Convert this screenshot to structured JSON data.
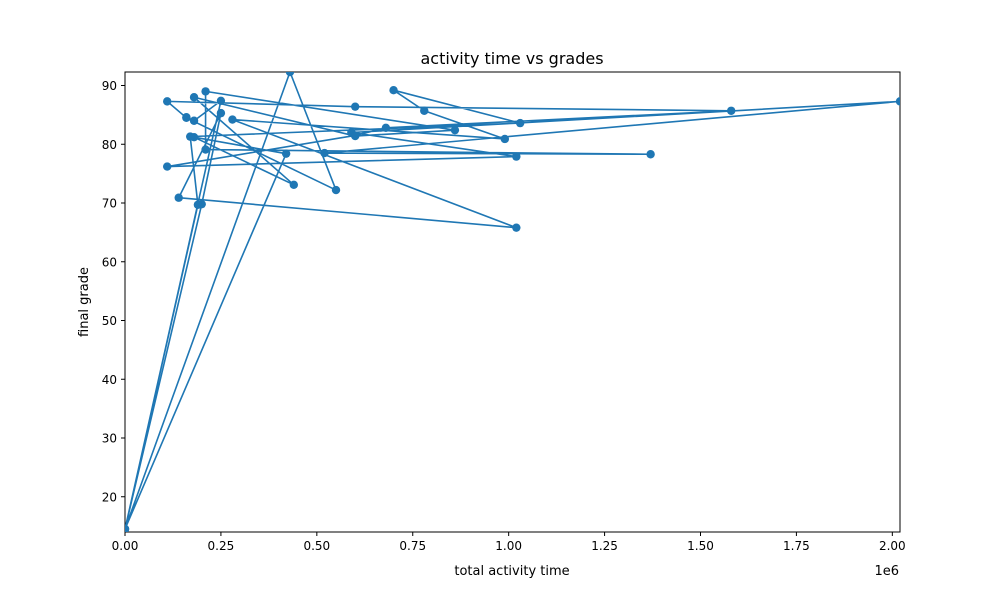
{
  "chart_data": {
    "type": "line",
    "title": "activity time vs grades",
    "xlabel": "total activity time",
    "ylabel": "final grade",
    "x_offset_label": "1e6",
    "xlim": [
      0,
      2.02
    ],
    "ylim": [
      14,
      92.3
    ],
    "x_ticks": [
      0.0,
      0.25,
      0.5,
      0.75,
      1.0,
      1.25,
      1.5,
      1.75,
      2.0
    ],
    "x_tick_labels": [
      "0.00",
      "0.25",
      "0.50",
      "0.75",
      "1.00",
      "1.25",
      "1.50",
      "1.75",
      "2.00"
    ],
    "y_ticks": [
      20,
      30,
      40,
      50,
      60,
      70,
      80,
      90
    ],
    "y_tick_labels": [
      "20",
      "30",
      "40",
      "50",
      "60",
      "70",
      "80",
      "90"
    ],
    "grid": false,
    "marker": "circle",
    "series": [
      {
        "color": "#1f77b4",
        "x": [
          0.0,
          0.43,
          0.55,
          0.16,
          0.11,
          0.6,
          1.58,
          0.68,
          0.6,
          0.11,
          1.02,
          0.59,
          2.02,
          0.52,
          1.37,
          0.21,
          0.21,
          0.86,
          0.6,
          0.18,
          0.44,
          0.18,
          0.42,
          0.0,
          0.2,
          0.25,
          0.14,
          1.02,
          0.28,
          0.99,
          0.78,
          0.7,
          1.03,
          0.17,
          0.19,
          0.0,
          0.25,
          0.18,
          0.16
        ],
        "y": [
          14.5,
          92.3,
          72.2,
          84.5,
          87.3,
          86.4,
          85.7,
          82.8,
          81.5,
          76.2,
          77.9,
          82.0,
          87.3,
          78.5,
          78.3,
          79.1,
          89.0,
          82.4,
          81.4,
          88.0,
          73.1,
          81.2,
          78.4,
          14.5,
          69.8,
          85.3,
          70.9,
          65.8,
          84.2,
          80.9,
          85.7,
          89.2,
          83.6,
          81.3,
          69.7,
          14.5,
          87.4,
          84.0,
          84.6
        ]
      }
    ]
  }
}
